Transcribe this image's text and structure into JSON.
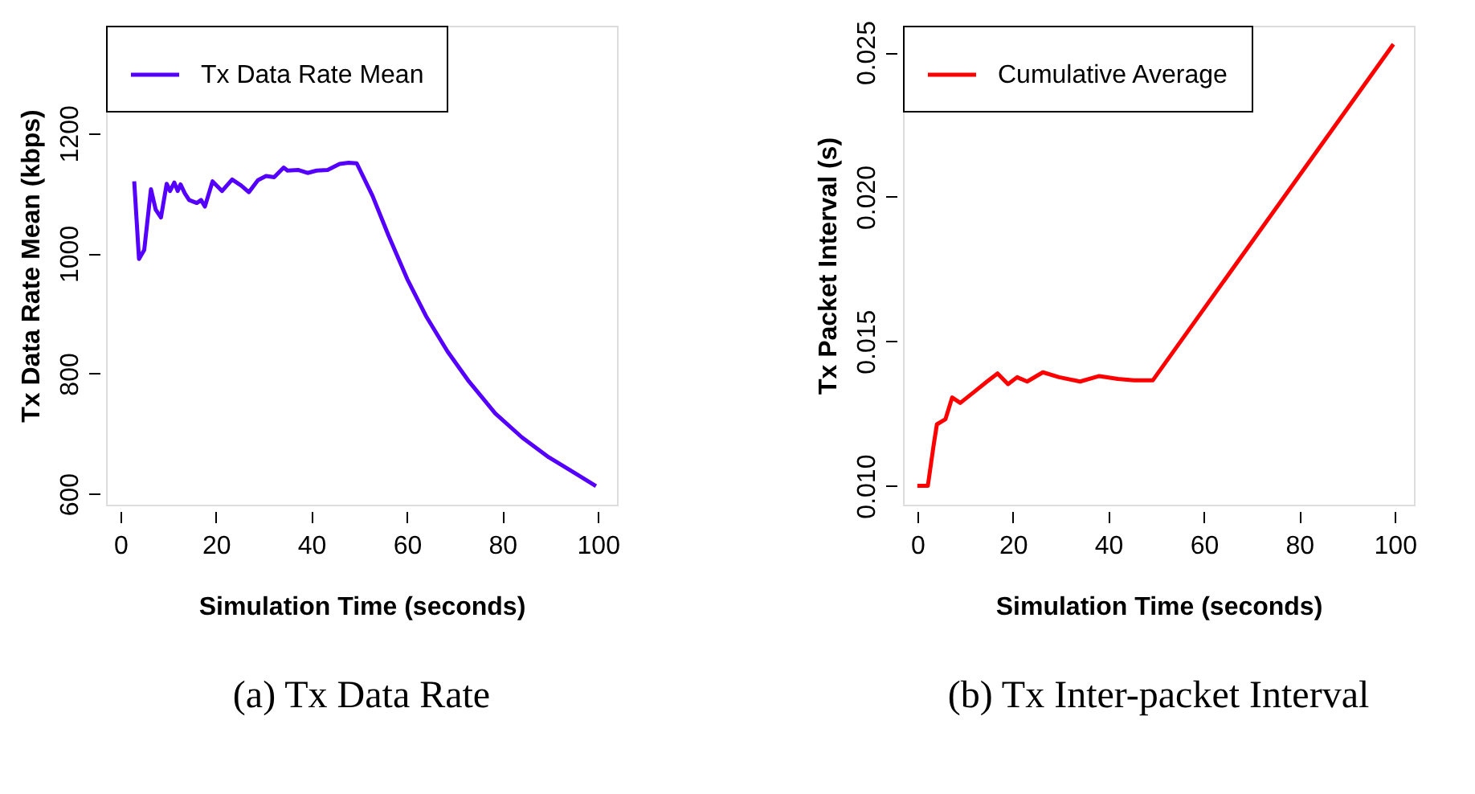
{
  "chart_data": [
    {
      "type": "line",
      "title": "(a)  Tx Data Rate",
      "xlabel": "Simulation Time (seconds)",
      "ylabel": "Tx Data Rate Mean (kbps)",
      "xlim": [
        -3,
        104
      ],
      "ylim": [
        582,
        1379
      ],
      "xticks": [
        0,
        20,
        40,
        60,
        80,
        100
      ],
      "yticks": [
        600,
        800,
        1000,
        1200
      ],
      "grid": false,
      "legend": "top left",
      "line_style": "solid",
      "marker": "none",
      "series": [
        {
          "name": "Tx Data Rate Mean",
          "color": "#5500ff",
          "x": [
            2.9,
            3.9,
            5.0,
            6.4,
            7.4,
            8.5,
            9.7,
            10.4,
            11.3,
            12.0,
            12.6,
            13.5,
            14.4,
            16.0,
            16.9,
            17.7,
            19.3,
            21.3,
            23.4,
            25.3,
            26.9,
            28.8,
            30.5,
            32.2,
            34.2,
            35.0,
            37.2,
            39.2,
            41.1,
            43.4,
            45.9,
            47.8,
            49.5,
            52.8,
            56.2,
            60.1,
            64.0,
            68.5,
            73.0,
            78.5,
            84.1,
            89.7,
            95.3,
            99.6
          ],
          "values": [
            1120,
            991,
            1006,
            1107,
            1073,
            1060,
            1116,
            1104,
            1118,
            1104,
            1115,
            1100,
            1089,
            1084,
            1089,
            1078,
            1120,
            1104,
            1123,
            1113,
            1102,
            1122,
            1129,
            1127,
            1143,
            1138,
            1139,
            1134,
            1138,
            1139,
            1149,
            1151,
            1150,
            1096,
            1029,
            957,
            896,
            837,
            787,
            734,
            694,
            661,
            634,
            613
          ]
        }
      ]
    },
    {
      "type": "line",
      "title": "(b)  Tx Inter-packet Interval",
      "xlabel": "Simulation Time (seconds)",
      "ylabel": "Tx Packet Interval (s)",
      "xlim": [
        -3,
        104
      ],
      "ylim": [
        0.00935,
        0.02592
      ],
      "xticks": [
        0,
        20,
        40,
        60,
        80,
        100
      ],
      "yticks": [
        {
          "value": 0.01,
          "label": "0.010"
        },
        {
          "value": 0.015,
          "label": "0.015"
        },
        {
          "value": 0.02,
          "label": "0.020"
        },
        {
          "value": 0.025,
          "label": "0.025"
        }
      ],
      "grid": false,
      "legend": "top left",
      "line_style": "solid",
      "marker": "none",
      "series": [
        {
          "name": "Cumulative Average",
          "color": "#ff0000",
          "x": [
            0,
            2.2,
            3.4,
            4.1,
            5.9,
            7.3,
            9.0,
            11.8,
            14.6,
            16.8,
            19.0,
            20.9,
            23.0,
            26.3,
            29.7,
            34.1,
            38.1,
            42.0,
            45.4,
            49.3,
            99.7
          ],
          "values": [
            0.01,
            0.01,
            0.01139,
            0.01213,
            0.01231,
            0.01306,
            0.01287,
            0.01324,
            0.01361,
            0.01389,
            0.01352,
            0.01376,
            0.01361,
            0.01393,
            0.01376,
            0.01361,
            0.0138,
            0.0137,
            0.01365,
            0.01365,
            0.02528
          ]
        }
      ]
    }
  ]
}
